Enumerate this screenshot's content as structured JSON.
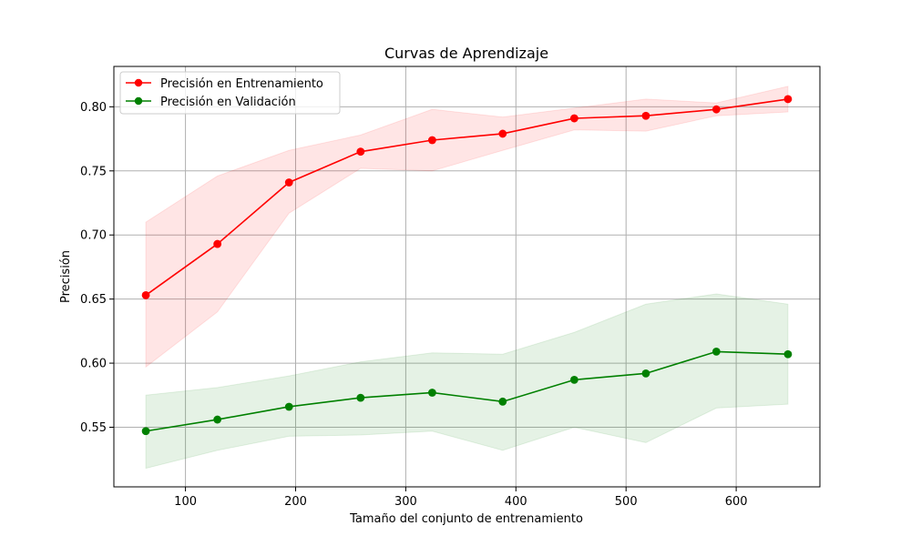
{
  "chart_data": {
    "type": "line",
    "title": "Curvas de Aprendizaje",
    "xlabel": "Tamaño del conjunto de entrenamiento",
    "ylabel": "Precisión",
    "xlim": [
      35,
      676
    ],
    "ylim": [
      0.5035,
      0.8315
    ],
    "xticks": [
      100,
      200,
      300,
      400,
      500,
      600
    ],
    "yticks": [
      0.55,
      0.6,
      0.65,
      0.7,
      0.75,
      0.8
    ],
    "grid": true,
    "legend_position": "top-left",
    "x": [
      64,
      129,
      194,
      259,
      324,
      388,
      453,
      518,
      582,
      647
    ],
    "series": [
      {
        "name": "Precisión en Entrenamiento",
        "color": "#ff0000",
        "band_color": "#ff0000",
        "values": [
          0.653,
          0.693,
          0.741,
          0.765,
          0.774,
          0.779,
          0.791,
          0.793,
          0.798,
          0.806
        ],
        "lower": [
          0.597,
          0.64,
          0.717,
          0.752,
          0.75,
          0.766,
          0.782,
          0.781,
          0.793,
          0.796
        ],
        "upper": [
          0.71,
          0.746,
          0.766,
          0.778,
          0.798,
          0.792,
          0.799,
          0.806,
          0.803,
          0.816
        ]
      },
      {
        "name": "Precisión en Validación",
        "color": "#008000",
        "band_color": "#008000",
        "values": [
          0.547,
          0.556,
          0.566,
          0.573,
          0.577,
          0.57,
          0.587,
          0.592,
          0.609,
          0.607
        ],
        "lower": [
          0.518,
          0.532,
          0.543,
          0.544,
          0.547,
          0.532,
          0.55,
          0.538,
          0.565,
          0.568
        ],
        "upper": [
          0.575,
          0.581,
          0.59,
          0.601,
          0.608,
          0.607,
          0.624,
          0.646,
          0.654,
          0.646
        ]
      }
    ]
  }
}
